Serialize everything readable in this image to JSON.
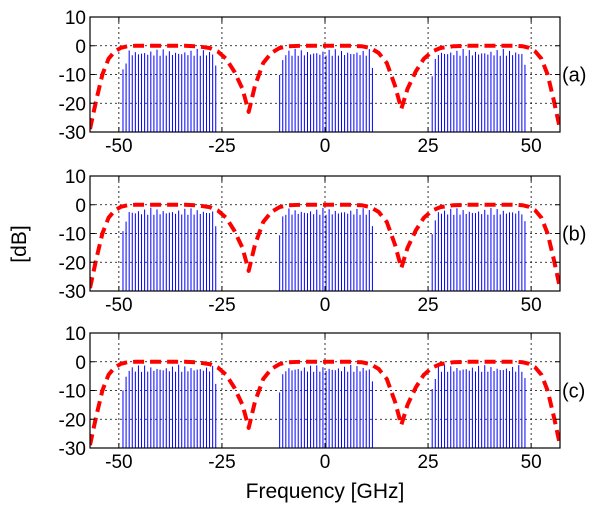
{
  "chart_data": {
    "type": "line",
    "xlabel": "Frequency [GHz]",
    "ylabel": "[dB]",
    "xlim": [
      -57,
      57
    ],
    "ylim": [
      -30,
      10
    ],
    "xticks": [
      "-50",
      "-25",
      "0",
      "25",
      "50"
    ],
    "xtick_values": [
      -50,
      -25,
      0,
      25,
      50
    ],
    "yticks": [
      "10",
      "0",
      "-10",
      "-20",
      "-30"
    ],
    "ytick_values": [
      10,
      0,
      -10,
      -20,
      -30
    ],
    "grid": true,
    "colors": {
      "spectrum": "#0000ff",
      "filter": "#ff0000"
    },
    "panels": [
      {
        "label": "(a)"
      },
      {
        "label": "(b)"
      },
      {
        "label": "(c)"
      }
    ],
    "series": [
      {
        "style": "dashed",
        "x": [
          -57,
          -55.5,
          -54,
          -52.5,
          -51,
          -49.5,
          -48,
          -46,
          -40,
          -34,
          -31,
          -28,
          -26,
          -24,
          -22,
          -20,
          -18.5,
          -17,
          -15,
          -13,
          -11,
          -9,
          -6,
          0,
          6,
          9,
          11,
          13,
          15,
          17,
          18.5,
          20,
          22,
          24,
          26,
          28,
          31,
          34,
          40,
          46,
          48,
          49.5,
          51,
          52.5,
          54,
          55.5,
          57
        ],
        "y": [
          -29,
          -19,
          -10,
          -4.5,
          -2,
          -0.7,
          -0.2,
          0,
          0,
          0,
          -0.2,
          -0.8,
          -2,
          -4.5,
          -9,
          -15,
          -23,
          -14,
          -6,
          -2.5,
          -0.8,
          -0.2,
          0,
          0,
          0,
          -0.2,
          -0.8,
          -2.5,
          -6,
          -14,
          -22,
          -15,
          -9,
          -4.5,
          -2,
          -0.8,
          -0.2,
          0,
          0,
          0,
          -0.2,
          -0.7,
          -2,
          -4.5,
          -10,
          -19,
          -29
        ]
      },
      {
        "style": "comb",
        "bands": [
          [
            -49,
            -26
          ],
          [
            -11,
            12
          ],
          [
            26,
            49
          ]
        ],
        "line_spacing_ghz": 0.75,
        "top_db": -1,
        "floor_db": -30
      }
    ]
  }
}
